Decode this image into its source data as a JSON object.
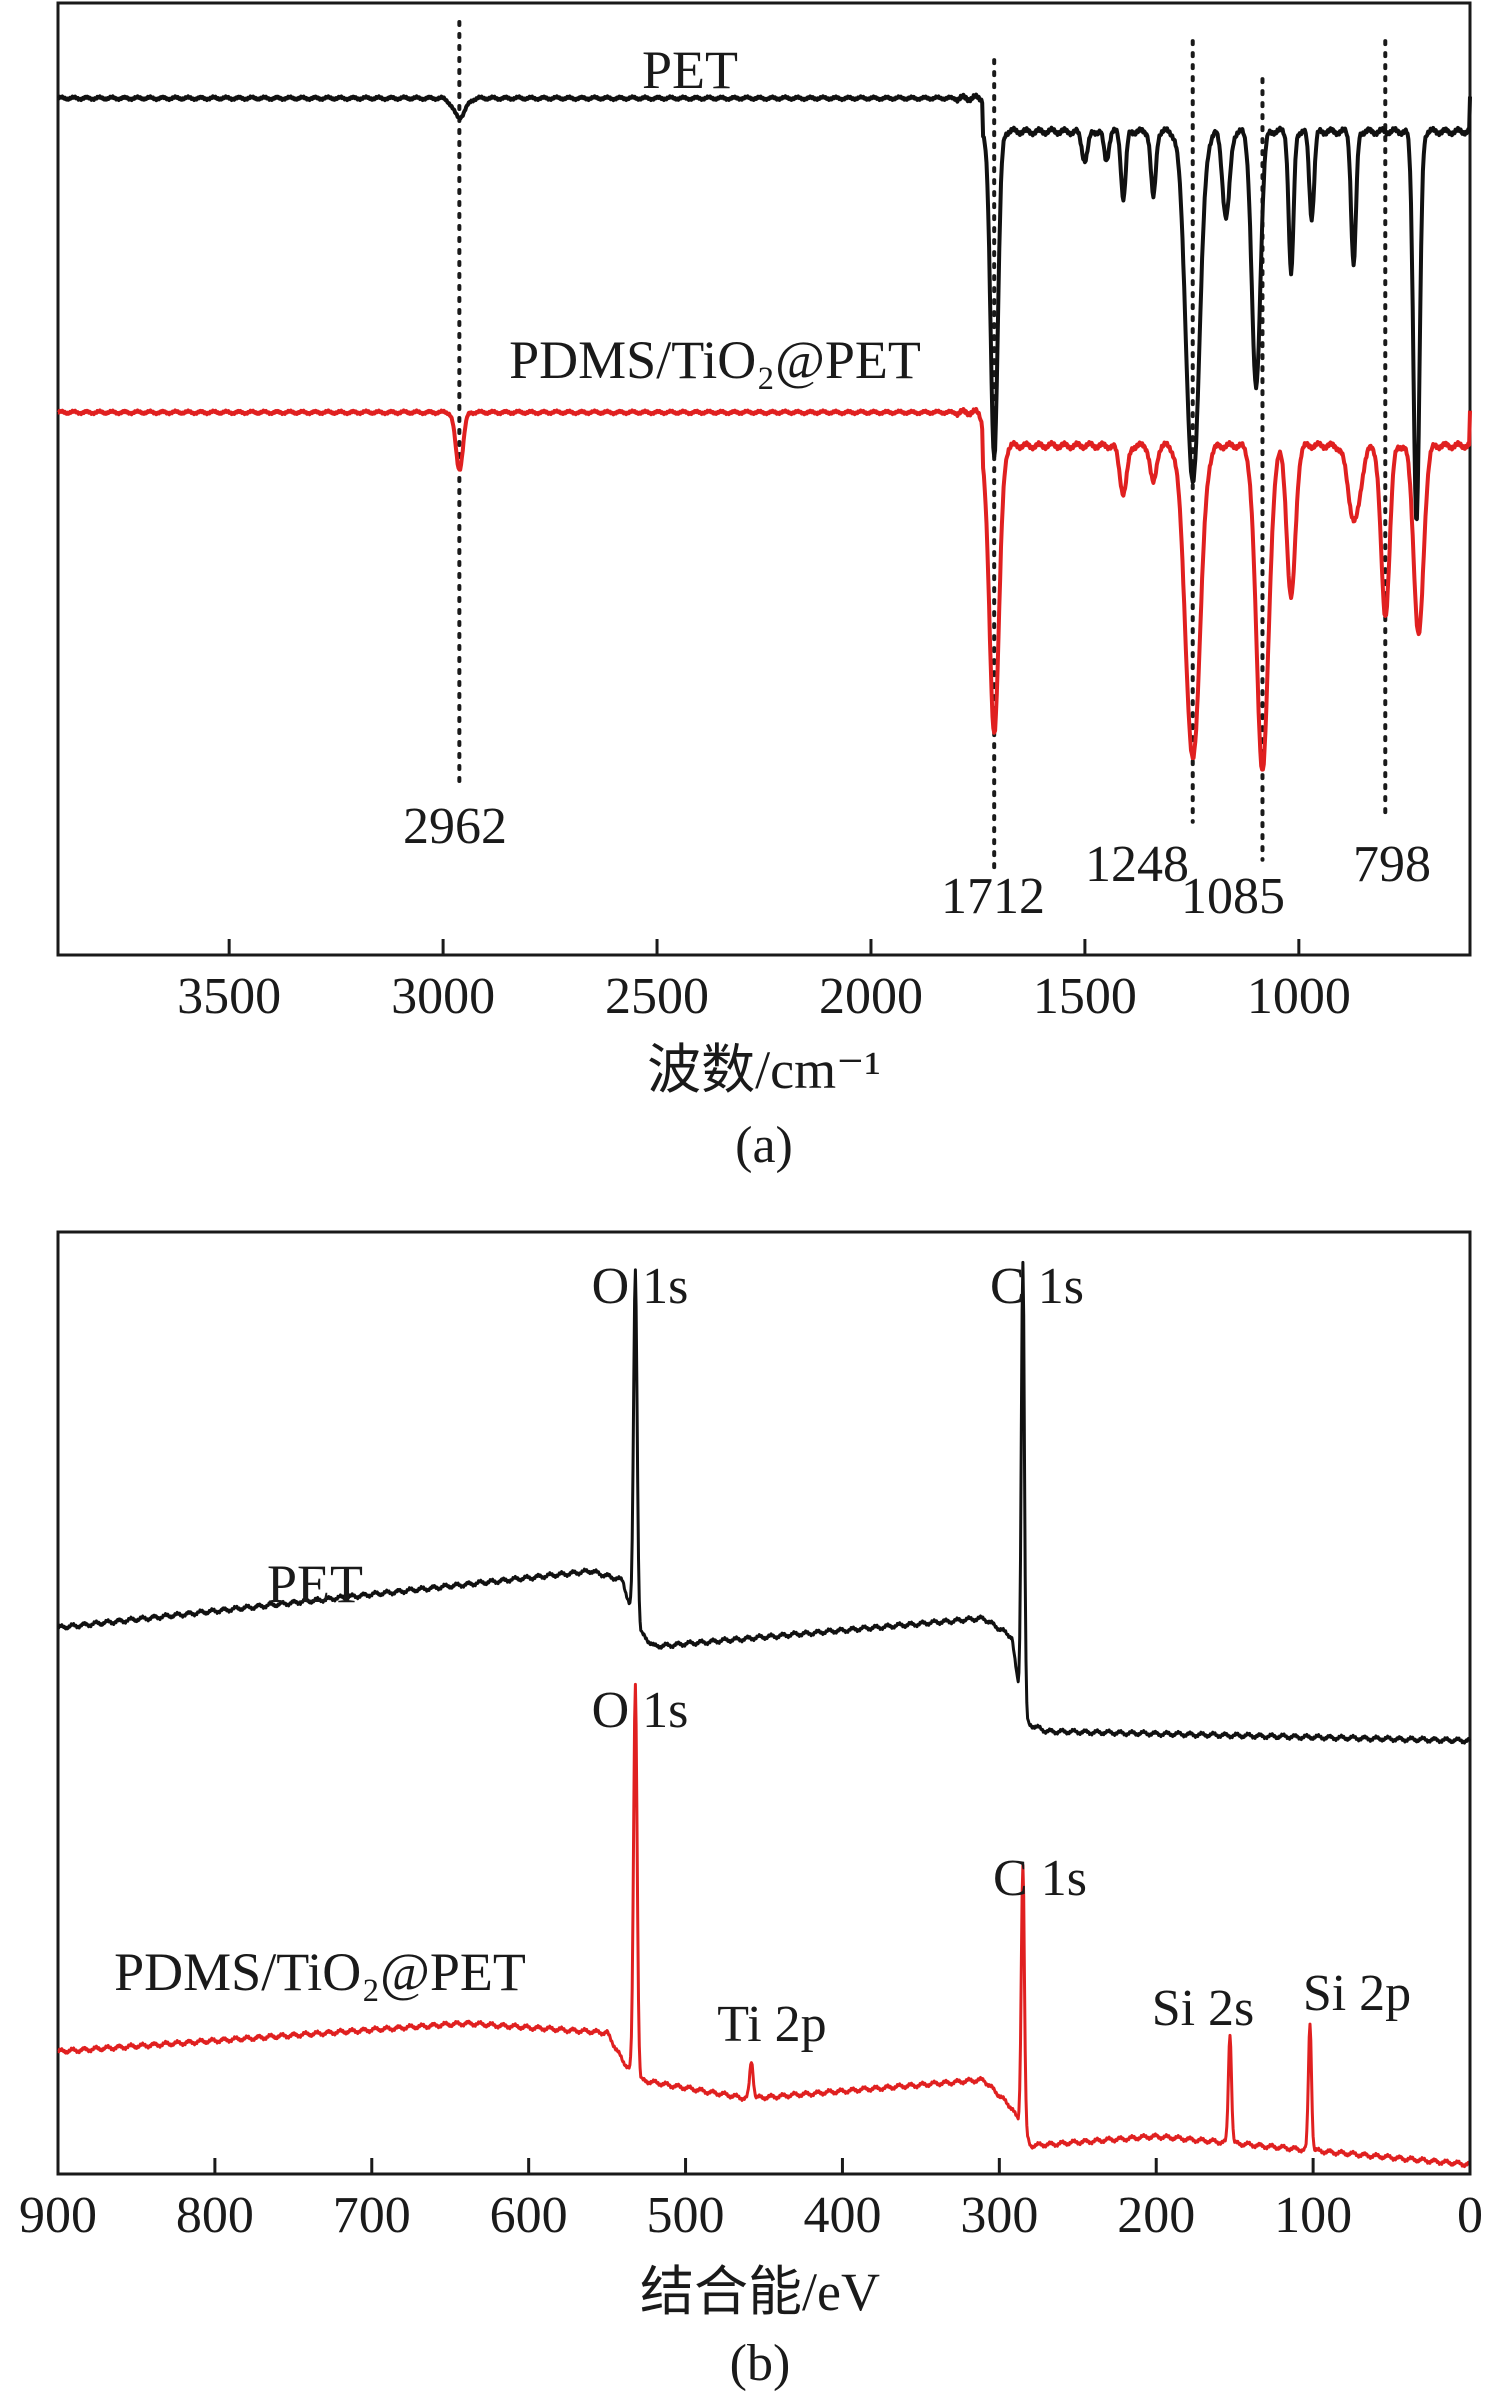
{
  "chart_data": [
    {
      "type": "line",
      "panel_caption": "(a)",
      "xlabel": "波数/cm⁻¹",
      "ylabel": "",
      "xlim": [
        3900,
        600
      ],
      "x_reversed": true,
      "xticks": [
        3500,
        3000,
        2500,
        2000,
        1500,
        1000
      ],
      "grid": false,
      "legend": "none",
      "peak_markers": [
        {
          "x": 2962,
          "label": "2962"
        },
        {
          "x": 1712,
          "label": "1712"
        },
        {
          "x": 1248,
          "label": "1248"
        },
        {
          "x": 1085,
          "label": "1085"
        },
        {
          "x": 798,
          "label": "798"
        }
      ],
      "series": [
        {
          "name": "PET",
          "color": "#111111",
          "baseline": 0.9,
          "dips": [
            {
              "x": 2962,
              "depth": 0.02,
              "width": 20
            },
            {
              "x": 1712,
              "depth": 0.34,
              "width": 12
            },
            {
              "x": 1500,
              "depth": 0.03,
              "width": 10
            },
            {
              "x": 1450,
              "depth": 0.03,
              "width": 8
            },
            {
              "x": 1410,
              "depth": 0.07,
              "width": 8
            },
            {
              "x": 1340,
              "depth": 0.07,
              "width": 8
            },
            {
              "x": 1248,
              "depth": 0.37,
              "width": 22
            },
            {
              "x": 1170,
              "depth": 0.09,
              "width": 12
            },
            {
              "x": 1100,
              "depth": 0.27,
              "width": 14
            },
            {
              "x": 1018,
              "depth": 0.15,
              "width": 8
            },
            {
              "x": 970,
              "depth": 0.09,
              "width": 8
            },
            {
              "x": 872,
              "depth": 0.14,
              "width": 8
            },
            {
              "x": 725,
              "depth": 0.41,
              "width": 10
            }
          ]
        },
        {
          "name": "PDMS/TiO₂@PET",
          "color": "#e02020",
          "baseline": 0.57,
          "dips": [
            {
              "x": 2962,
              "depth": 0.06,
              "width": 12
            },
            {
              "x": 1712,
              "depth": 0.3,
              "width": 16
            },
            {
              "x": 1410,
              "depth": 0.05,
              "width": 12
            },
            {
              "x": 1340,
              "depth": 0.04,
              "width": 10
            },
            {
              "x": 1248,
              "depth": 0.33,
              "width": 24
            },
            {
              "x": 1085,
              "depth": 0.34,
              "width": 20
            },
            {
              "x": 1018,
              "depth": 0.16,
              "width": 14
            },
            {
              "x": 870,
              "depth": 0.08,
              "width": 20
            },
            {
              "x": 798,
              "depth": 0.18,
              "width": 14
            },
            {
              "x": 720,
              "depth": 0.2,
              "width": 16
            }
          ]
        }
      ]
    },
    {
      "type": "line",
      "panel_caption": "(b)",
      "xlabel": "结合能/eV",
      "ylabel": "",
      "xlim": [
        900,
        0
      ],
      "x_reversed": true,
      "xticks": [
        900,
        800,
        700,
        600,
        500,
        400,
        300,
        200,
        100,
        0
      ],
      "grid": false,
      "legend": "none",
      "series": [
        {
          "name": "PET",
          "color": "#111111",
          "background": [
            [
              900,
              0.58
            ],
            [
              560,
              0.64
            ],
            [
              540,
              0.63
            ],
            [
              532,
              0.58
            ],
            [
              520,
              0.56
            ],
            [
              310,
              0.59
            ],
            [
              292,
              0.57
            ],
            [
              285,
              0.48
            ],
            [
              270,
              0.47
            ],
            [
              0,
              0.46
            ]
          ],
          "peaks": [
            {
              "x": 532,
              "label": "O 1s",
              "height": 0.96
            },
            {
              "x": 285,
              "label": "C 1s",
              "height": 0.97
            }
          ]
        },
        {
          "name": "PDMS/TiO₂@PET",
          "color": "#e02020",
          "background": [
            [
              900,
              0.13
            ],
            [
              640,
              0.16
            ],
            [
              550,
              0.15
            ],
            [
              540,
              0.12
            ],
            [
              530,
              0.1
            ],
            [
              460,
              0.08
            ],
            [
              310,
              0.1
            ],
            [
              292,
              0.07
            ],
            [
              280,
              0.03
            ],
            [
              200,
              0.04
            ],
            [
              0,
              0.01
            ]
          ],
          "peaks": [
            {
              "x": 532,
              "label": "O 1s",
              "height": 0.52
            },
            {
              "x": 458,
              "label": "Ti 2p",
              "height": 0.12
            },
            {
              "x": 285,
              "label": "C 1s",
              "height": 0.33
            },
            {
              "x": 153,
              "label": "Si 2s",
              "height": 0.15
            },
            {
              "x": 102,
              "label": "Si 2p",
              "height": 0.16
            }
          ]
        }
      ]
    }
  ]
}
